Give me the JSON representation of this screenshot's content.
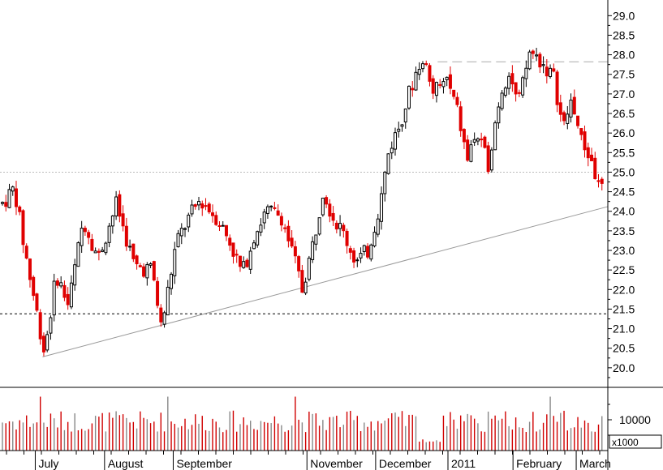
{
  "chart_data": {
    "type": "candlestick",
    "price_axis": {
      "ylim": [
        19.5,
        29.4
      ],
      "ticks": [
        "29.0",
        "28.5",
        "28.0",
        "27.5",
        "27.0",
        "26.5",
        "26.0",
        "25.5",
        "25.0",
        "24.5",
        "24.0",
        "23.5",
        "23.0",
        "22.5",
        "22.0",
        "21.5",
        "21.0",
        "20.5",
        "20.0"
      ]
    },
    "volume_axis": {
      "ylim": [
        0,
        20000
      ],
      "ticks": [
        "10000"
      ],
      "unit": "x1000"
    },
    "x_labels": [
      "July",
      "August",
      "September",
      "November",
      "December",
      "2011",
      "February",
      "March"
    ],
    "colors": {
      "up": "#000000",
      "down": "#e00000",
      "volume": "#d00000",
      "grid": "#bbbbbb"
    },
    "reference_lines": [
      {
        "style": "dotted",
        "y": 25.0
      },
      {
        "style": "dashed",
        "y": 21.38
      },
      {
        "style": "long-dash",
        "y": 27.82,
        "from": 0.72
      }
    ],
    "trendline": {
      "from": [
        0.07,
        20.28
      ],
      "to": [
        1.0,
        24.12
      ]
    },
    "anchors": [
      [
        0.0,
        24.2
      ],
      [
        0.02,
        24.6
      ],
      [
        0.035,
        23.2
      ],
      [
        0.05,
        22.0
      ],
      [
        0.07,
        20.4
      ],
      [
        0.09,
        22.4
      ],
      [
        0.11,
        21.6
      ],
      [
        0.135,
        23.8
      ],
      [
        0.16,
        22.8
      ],
      [
        0.19,
        24.2
      ],
      [
        0.22,
        22.6
      ],
      [
        0.25,
        22.5
      ],
      [
        0.265,
        21.0
      ],
      [
        0.29,
        23.2
      ],
      [
        0.31,
        23.8
      ],
      [
        0.33,
        24.3
      ],
      [
        0.36,
        23.8
      ],
      [
        0.38,
        23.2
      ],
      [
        0.4,
        22.4
      ],
      [
        0.42,
        23.4
      ],
      [
        0.44,
        24.0
      ],
      [
        0.465,
        23.9
      ],
      [
        0.49,
        22.6
      ],
      [
        0.5,
        22.0
      ],
      [
        0.52,
        23.3
      ],
      [
        0.535,
        24.6
      ],
      [
        0.55,
        23.9
      ],
      [
        0.57,
        23.4
      ],
      [
        0.59,
        22.7
      ],
      [
        0.61,
        23.0
      ],
      [
        0.63,
        24.2
      ],
      [
        0.645,
        25.6
      ],
      [
        0.66,
        26.1
      ],
      [
        0.68,
        27.1
      ],
      [
        0.7,
        28.0
      ],
      [
        0.72,
        27.0
      ],
      [
        0.74,
        27.4
      ],
      [
        0.76,
        26.5
      ],
      [
        0.775,
        25.3
      ],
      [
        0.79,
        26.0
      ],
      [
        0.81,
        25.2
      ],
      [
        0.83,
        27.0
      ],
      [
        0.845,
        27.6
      ],
      [
        0.86,
        26.7
      ],
      [
        0.88,
        28.1
      ],
      [
        0.9,
        27.8
      ],
      [
        0.92,
        27.4
      ],
      [
        0.935,
        26.1
      ],
      [
        0.95,
        26.9
      ],
      [
        0.965,
        25.8
      ],
      [
        0.98,
        25.4
      ],
      [
        0.995,
        24.6
      ]
    ]
  }
}
